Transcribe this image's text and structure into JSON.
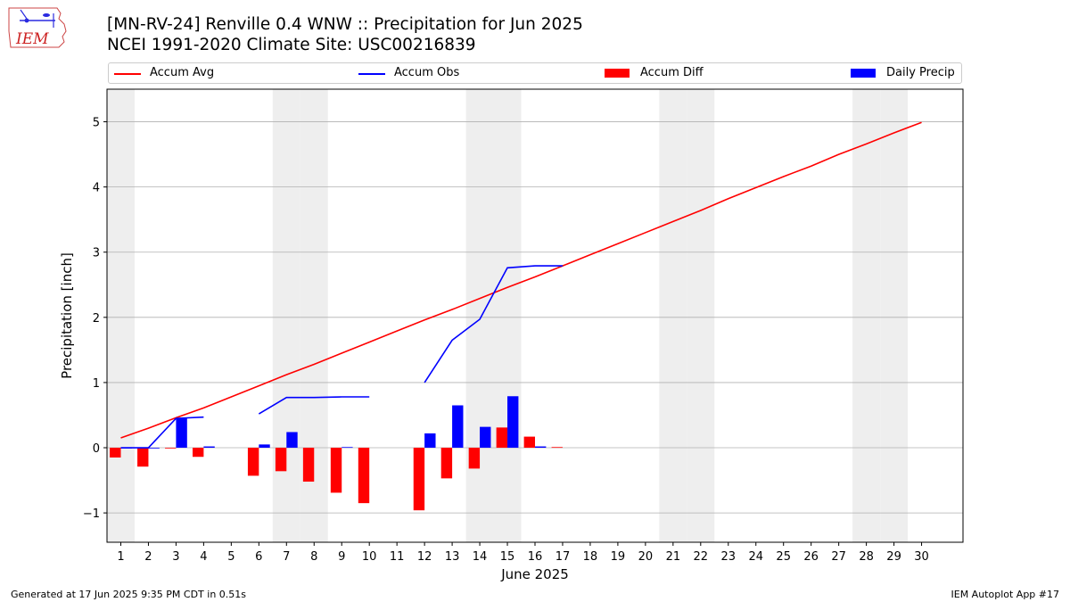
{
  "header": {
    "title_line1": "[MN-RV-24] Renville 0.4 WNW :: Precipitation for Jun 2025",
    "title_line2": "NCEI 1991-2020 Climate Site: USC00216839"
  },
  "logo": {
    "text": "IEM",
    "icon": "iem-iowa-logo-icon"
  },
  "footer": {
    "left": "Generated at 17 Jun 2025 9:35 PM CDT in 0.51s",
    "right": "IEM Autoplot App #17"
  },
  "colors": {
    "avg": "#ff0000",
    "obs": "#0000ff",
    "diff": "#ff0000",
    "daily": "#0000ff",
    "weekend": "#eeeeee",
    "grid": "#b0b0b0"
  },
  "chart_data": {
    "type": "bar",
    "xlabel": "June 2025",
    "ylabel": "Precipitation [inch]",
    "ylim": [
      -1.45,
      5.5
    ],
    "xlim": [
      0.5,
      31.5
    ],
    "yticks": [
      -1,
      0,
      1,
      2,
      3,
      4,
      5
    ],
    "ytick_labels": [
      "−1",
      "0",
      "1",
      "2",
      "3",
      "4",
      "5"
    ],
    "days": [
      1,
      2,
      3,
      4,
      5,
      6,
      7,
      8,
      9,
      10,
      11,
      12,
      13,
      14,
      15,
      16,
      17,
      18,
      19,
      20,
      21,
      22,
      23,
      24,
      25,
      26,
      27,
      28,
      29,
      30
    ],
    "weekend_days": [
      1,
      7,
      8,
      14,
      15,
      21,
      22,
      28,
      29
    ],
    "grid": true,
    "legend_placement": "top",
    "legend": [
      "Accum Avg",
      "Accum Obs",
      "Accum Diff",
      "Daily Precip"
    ],
    "series": [
      {
        "name": "Accum Avg",
        "kind": "line",
        "x": [
          1,
          2,
          3,
          4,
          5,
          6,
          7,
          8,
          9,
          10,
          11,
          12,
          13,
          14,
          15,
          16,
          17,
          18,
          19,
          20,
          21,
          22,
          23,
          24,
          25,
          26,
          27,
          28,
          29,
          30
        ],
        "values": [
          0.15,
          0.3,
          0.46,
          0.61,
          0.78,
          0.95,
          1.12,
          1.28,
          1.45,
          1.62,
          1.79,
          1.96,
          2.12,
          2.29,
          2.46,
          2.62,
          2.79,
          2.96,
          3.13,
          3.3,
          3.47,
          3.64,
          3.82,
          3.99,
          4.16,
          4.32,
          4.5,
          4.66,
          4.83,
          4.99
        ]
      },
      {
        "name": "Accum Obs",
        "kind": "line",
        "segments": [
          {
            "x": [
              1,
              2,
              3,
              4
            ],
            "values": [
              0.0,
              0.0,
              0.45,
              0.47
            ]
          },
          {
            "x": [
              6,
              7,
              8,
              9,
              10
            ],
            "values": [
              0.52,
              0.77,
              0.77,
              0.78,
              0.78
            ]
          },
          {
            "x": [
              12,
              13,
              14,
              15,
              16,
              17
            ],
            "values": [
              1.0,
              1.65,
              1.97,
              2.76,
              2.79,
              2.79
            ]
          }
        ]
      },
      {
        "name": "Accum Diff",
        "kind": "bar",
        "x": [
          1,
          2,
          3,
          4,
          6,
          7,
          8,
          9,
          10,
          12,
          13,
          14,
          15,
          16,
          17
        ],
        "values": [
          -0.15,
          -0.29,
          -0.01,
          -0.14,
          -0.43,
          -0.36,
          -0.52,
          -0.69,
          -0.85,
          -0.96,
          -0.47,
          -0.32,
          0.31,
          0.17,
          0.01
        ]
      },
      {
        "name": "Daily Precip",
        "kind": "bar",
        "x": [
          1,
          2,
          3,
          4,
          6,
          7,
          9,
          12,
          13,
          14,
          15,
          16
        ],
        "values": [
          0.0,
          0.0,
          0.45,
          0.02,
          0.05,
          0.24,
          0.01,
          0.22,
          0.65,
          0.32,
          0.79,
          0.02
        ]
      }
    ]
  }
}
